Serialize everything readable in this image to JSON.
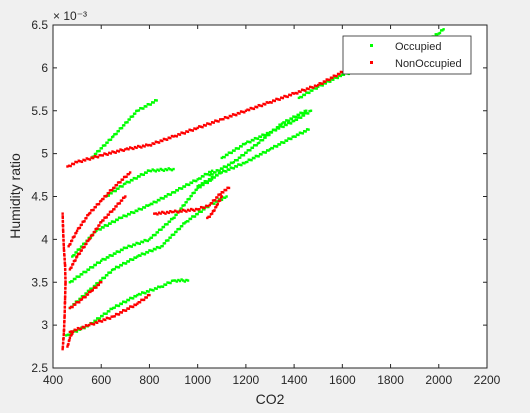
{
  "chart_data": {
    "type": "scatter",
    "title": "",
    "xlabel": "CO2",
    "ylabel": "Humidity ratio",
    "xlim": [
      400,
      2200
    ],
    "ylim": [
      0.0025,
      0.0065
    ],
    "y_exponent_label": "× 10⁻³",
    "x_ticks": [
      400,
      600,
      800,
      1000,
      1200,
      1400,
      1600,
      1800,
      2000,
      2200
    ],
    "x_tick_labels": [
      "400",
      "600",
      "800",
      "1000",
      "1200",
      "1400",
      "1600",
      "1800",
      "2000",
      "2200"
    ],
    "y_ticks": [
      0.0025,
      0.003,
      0.0035,
      0.004,
      0.0045,
      0.005,
      0.0055,
      0.006,
      0.0065
    ],
    "y_tick_labels": [
      "2.5",
      "3",
      "3.5",
      "4",
      "4.5",
      "5",
      "5.5",
      "6",
      "6.5"
    ],
    "grid": false,
    "legend": {
      "position": "top-right"
    },
    "series": [
      {
        "name": "Occupied",
        "color": "#00ff00",
        "segments": [
          [
            [
              455,
              0.00288
            ],
            [
              550,
              0.003
            ],
            [
              650,
              0.0032
            ],
            [
              750,
              0.00335
            ],
            [
              850,
              0.00345
            ],
            [
              900,
              0.00352
            ],
            [
              960,
              0.00352
            ]
          ],
          [
            [
              470,
              0.0032
            ],
            [
              550,
              0.0034
            ],
            [
              650,
              0.00365
            ],
            [
              750,
              0.0038
            ],
            [
              850,
              0.00392
            ],
            [
              950,
              0.0042
            ],
            [
              1050,
              0.0044
            ],
            [
              1120,
              0.0045
            ]
          ],
          [
            [
              470,
              0.0035
            ],
            [
              600,
              0.00375
            ],
            [
              700,
              0.0039
            ],
            [
              800,
              0.004
            ],
            [
              900,
              0.00425
            ],
            [
              1000,
              0.0046
            ],
            [
              1060,
              0.0047
            ]
          ],
          [
            [
              480,
              0.0038
            ],
            [
              580,
              0.0041
            ],
            [
              680,
              0.00425
            ],
            [
              800,
              0.0044
            ],
            [
              900,
              0.00455
            ],
            [
              1000,
              0.0047
            ],
            [
              1060,
              0.0048
            ]
          ],
          [
            [
              560,
              0.00495
            ],
            [
              650,
              0.0052
            ],
            [
              750,
              0.0055
            ],
            [
              830,
              0.00562
            ]
          ],
          [
            [
              620,
              0.0045
            ],
            [
              700,
              0.00465
            ],
            [
              800,
              0.0048
            ],
            [
              900,
              0.00482
            ]
          ],
          [
            [
              1000,
              0.00462
            ],
            [
              1100,
              0.00478
            ],
            [
              1200,
              0.0049
            ],
            [
              1300,
              0.00505
            ],
            [
              1400,
              0.0052
            ],
            [
              1460,
              0.00528
            ]
          ],
          [
            [
              1100,
              0.00495
            ],
            [
              1200,
              0.00512
            ],
            [
              1300,
              0.00525
            ],
            [
              1400,
              0.00538
            ],
            [
              1470,
              0.0055
            ]
          ],
          [
            [
              1050,
              0.00475
            ],
            [
              1150,
              0.0049
            ],
            [
              1250,
              0.00512
            ],
            [
              1350,
              0.00535
            ],
            [
              1450,
              0.0055
            ]
          ],
          [
            [
              1420,
              0.00565
            ],
            [
              1500,
              0.00578
            ],
            [
              1600,
              0.00592
            ],
            [
              1700,
              0.006
            ],
            [
              1750,
              0.00605
            ]
          ],
          [
            [
              1850,
              0.00615
            ],
            [
              1950,
              0.00632
            ],
            [
              2000,
              0.0064
            ],
            [
              2020,
              0.00645
            ]
          ]
        ]
      },
      {
        "name": "NonOccupied",
        "color": "#ff0000",
        "segments": [
          [
            [
              440,
              0.00272
            ],
            [
              445,
              0.0029
            ],
            [
              448,
              0.0031
            ],
            [
              450,
              0.0033
            ],
            [
              452,
              0.0035
            ],
            [
              450,
              0.0037
            ],
            [
              445,
              0.0039
            ],
            [
              442,
              0.0041
            ],
            [
              440,
              0.0043
            ]
          ],
          [
            [
              460,
              0.00275
            ],
            [
              470,
              0.00285
            ],
            [
              480,
              0.0029
            ]
          ],
          [
            [
              470,
              0.00292
            ],
            [
              550,
              0.003
            ],
            [
              650,
              0.0031
            ],
            [
              750,
              0.00325
            ],
            [
              800,
              0.00335
            ]
          ],
          [
            [
              470,
              0.0032
            ],
            [
              520,
              0.0033
            ],
            [
              560,
              0.0034
            ],
            [
              600,
              0.0035
            ]
          ],
          [
            [
              470,
              0.00365
            ],
            [
              500,
              0.0038
            ],
            [
              550,
              0.004
            ],
            [
              600,
              0.0042
            ],
            [
              650,
              0.00435
            ],
            [
              700,
              0.0045
            ]
          ],
          [
            [
              465,
              0.00392
            ],
            [
              500,
              0.0041
            ],
            [
              550,
              0.0043
            ],
            [
              600,
              0.00445
            ],
            [
              650,
              0.0046
            ],
            [
              720,
              0.00478
            ]
          ],
          [
            [
              460,
              0.00485
            ],
            [
              500,
              0.0049
            ],
            [
              600,
              0.00498
            ],
            [
              700,
              0.00505
            ],
            [
              800,
              0.0051
            ],
            [
              900,
              0.0052
            ],
            [
              1000,
              0.0053
            ],
            [
              1100,
              0.0054
            ],
            [
              1200,
              0.0055
            ],
            [
              1300,
              0.0056
            ],
            [
              1400,
              0.0057
            ],
            [
              1500,
              0.0058
            ],
            [
              1600,
              0.00595
            ],
            [
              1700,
              0.006
            ],
            [
              1750,
              0.006
            ]
          ],
          [
            [
              820,
              0.0043
            ],
            [
              900,
              0.00432
            ],
            [
              1000,
              0.00435
            ],
            [
              1050,
              0.0044
            ],
            [
              1100,
              0.00455
            ],
            [
              1130,
              0.0046
            ]
          ],
          [
            [
              1040,
              0.00425
            ],
            [
              1060,
              0.0043
            ],
            [
              1080,
              0.0044
            ],
            [
              1100,
              0.0045
            ]
          ]
        ]
      }
    ]
  }
}
